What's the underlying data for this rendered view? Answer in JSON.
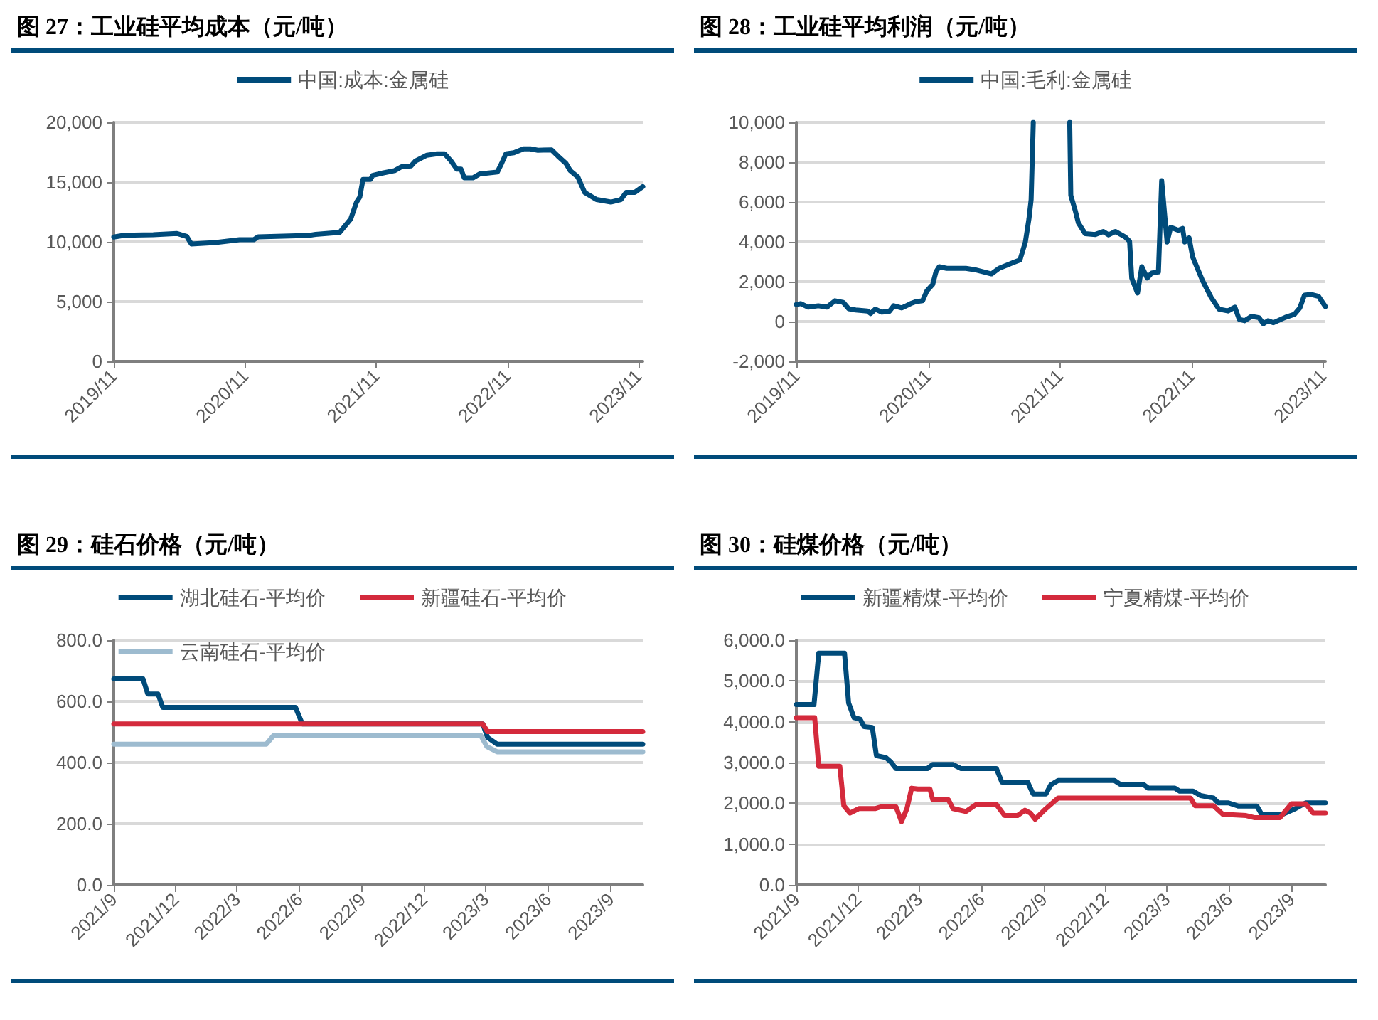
{
  "chart_data": [
    {
      "type": "line",
      "title": "图 27：工业硅平均成本（元/吨）",
      "legend": "top",
      "grid": "y",
      "marker": "none",
      "line_style": "solid",
      "xlim": [
        "2019-11-01",
        "2023-11-13"
      ],
      "xticks": [
        {
          "value": "2019-11-01",
          "label": "2019/11"
        },
        {
          "value": "2020-11-01",
          "label": "2020/11"
        },
        {
          "value": "2021-11-01",
          "label": "2021/11"
        },
        {
          "value": "2022-11-01",
          "label": "2022/11"
        },
        {
          "value": "2023-11-01",
          "label": "2023/11"
        }
      ],
      "ylim": [
        0,
        20000
      ],
      "yticks": [
        {
          "value": 0,
          "label": "0"
        },
        {
          "value": 5000,
          "label": "5,000"
        },
        {
          "value": 10000,
          "label": "10,000"
        },
        {
          "value": 15000,
          "label": "15,000"
        },
        {
          "value": 20000,
          "label": "20,000"
        }
      ],
      "series": [
        {
          "name": "中国:成本:金属硅",
          "color": "#004b7a",
          "x": [
            "2019-11-01",
            "2019-12-01",
            "2020-02-19",
            "2020-04-25",
            "2020-05-22",
            "2020-06-04",
            "2020-08-10",
            "2020-10-16",
            "2020-11-25",
            "2020-12-07",
            "2021-03-22",
            "2021-04-19",
            "2021-05-16",
            "2021-07-22",
            "2021-08-22",
            "2021-09-07",
            "2021-09-16",
            "2021-09-25",
            "2021-10-16",
            "2021-10-22",
            "2021-11-19",
            "2021-12-22",
            "2022-01-10",
            "2022-02-06",
            "2022-02-18",
            "2022-03-22",
            "2022-04-19",
            "2022-05-10",
            "2022-05-28",
            "2022-06-13",
            "2022-06-25",
            "2022-07-04",
            "2022-07-28",
            "2022-08-16",
            "2022-10-04",
            "2022-10-16",
            "2022-10-28",
            "2022-11-19",
            "2022-12-16",
            "2023-01-04",
            "2023-01-25",
            "2023-03-04",
            "2023-03-22",
            "2023-04-13",
            "2023-04-25",
            "2023-05-16",
            "2023-06-04",
            "2023-07-07",
            "2023-08-16",
            "2023-09-13",
            "2023-09-28",
            "2023-10-22",
            "2023-11-13"
          ],
          "values": [
            10400,
            10550,
            10600,
            10700,
            10450,
            9820,
            9940,
            10180,
            10180,
            10420,
            10500,
            10500,
            10620,
            10790,
            11920,
            13330,
            13740,
            15230,
            15230,
            15560,
            15760,
            15960,
            16280,
            16360,
            16770,
            17250,
            17370,
            17370,
            16770,
            16080,
            16080,
            15350,
            15350,
            15680,
            15840,
            16570,
            17370,
            17450,
            17780,
            17780,
            17660,
            17700,
            17170,
            16570,
            15960,
            15430,
            14140,
            13540,
            13330,
            13540,
            14140,
            14140,
            14620
          ]
        }
      ]
    },
    {
      "type": "line",
      "title": "图 28：工业硅平均利润（元/吨）",
      "legend": "top",
      "grid": "y",
      "marker": "none",
      "line_style": "solid",
      "xlim": [
        "2019-11-01",
        "2023-11-07"
      ],
      "xticks": [
        {
          "value": "2019-11-01",
          "label": "2019/11"
        },
        {
          "value": "2020-11-01",
          "label": "2020/11"
        },
        {
          "value": "2021-11-01",
          "label": "2021/11"
        },
        {
          "value": "2022-11-01",
          "label": "2022/11"
        },
        {
          "value": "2023-11-01",
          "label": "2023/11"
        }
      ],
      "ylim": [
        -2000,
        10000
      ],
      "yticks": [
        {
          "value": -2000,
          "label": "-2,000"
        },
        {
          "value": 0,
          "label": "0"
        },
        {
          "value": 2000,
          "label": "2,000"
        },
        {
          "value": 4000,
          "label": "4,000"
        },
        {
          "value": 6000,
          "label": "6,000"
        },
        {
          "value": 8000,
          "label": "8,000"
        },
        {
          "value": 10000,
          "label": "10,000"
        }
      ],
      "series": [
        {
          "name": "中国:毛利:金属硅",
          "color": "#004b7a",
          "x": [
            "2019-11-01",
            "2019-11-13",
            "2019-12-04",
            "2020-01-01",
            "2020-01-25",
            "2020-02-16",
            "2020-03-10",
            "2020-03-25",
            "2020-04-13",
            "2020-05-16",
            "2020-05-25",
            "2020-06-07",
            "2020-06-25",
            "2020-07-16",
            "2020-07-28",
            "2020-08-19",
            "2020-09-13",
            "2020-09-28",
            "2020-10-16",
            "2020-10-28",
            "2020-11-13",
            "2020-11-22",
            "2020-12-01",
            "2020-12-22",
            "2021-02-13",
            "2021-03-10",
            "2021-04-25",
            "2021-05-16",
            "2021-06-25",
            "2021-07-13",
            "2021-07-28",
            "2021-08-07",
            "2021-08-13",
            "2021-08-19",
            "2021-10-15",
            "2021-11-28",
            "2021-12-01",
            "2021-12-13",
            "2021-12-22",
            "2022-01-10",
            "2022-02-07",
            "2022-03-01",
            "2022-03-16",
            "2022-04-04",
            "2022-05-01",
            "2022-05-13",
            "2022-05-19",
            "2022-06-04",
            "2022-06-16",
            "2022-07-01",
            "2022-07-13",
            "2022-08-01",
            "2022-08-10",
            "2022-08-25",
            "2022-09-04",
            "2022-09-25",
            "2022-10-07",
            "2022-10-13",
            "2022-10-25",
            "2022-11-04",
            "2022-12-01",
            "2022-12-25",
            "2023-01-16",
            "2023-02-10",
            "2023-03-01",
            "2023-03-13",
            "2023-03-28",
            "2023-04-16",
            "2023-05-07",
            "2023-05-19",
            "2023-06-01",
            "2023-06-16",
            "2023-07-19",
            "2023-08-13",
            "2023-08-28",
            "2023-09-10",
            "2023-09-28",
            "2023-10-19",
            "2023-11-07"
          ],
          "values": [
            850,
            900,
            720,
            790,
            720,
            1040,
            960,
            640,
            580,
            530,
            400,
            620,
            470,
            510,
            790,
            680,
            900,
            1000,
            1040,
            1540,
            1860,
            2490,
            2750,
            2670,
            2670,
            2600,
            2390,
            2670,
            2960,
            3090,
            3990,
            5160,
            6120,
            10000,
            null,
            10000,
            6330,
            5590,
            4950,
            4410,
            4370,
            4520,
            4350,
            4520,
            4240,
            4030,
            2180,
            1430,
            2750,
            2180,
            2430,
            2490,
            7070,
            3990,
            4730,
            4580,
            4670,
            3990,
            4200,
            3240,
            2070,
            1220,
            620,
            530,
            720,
            110,
            40,
            260,
            190,
            -110,
            40,
            -60,
            210,
            360,
            680,
            1320,
            1360,
            1260,
            750
          ]
        }
      ]
    },
    {
      "type": "line",
      "title": "图 29：硅石价格（元/吨）",
      "legend": "top",
      "grid": "y",
      "marker": "none",
      "line_style": "solid",
      "xlim": [
        "2021-09-01",
        "2023-10-18"
      ],
      "xticks": [
        {
          "value": "2021-09-01",
          "label": "2021/9"
        },
        {
          "value": "2021-12-01",
          "label": "2021/12"
        },
        {
          "value": "2022-03-01",
          "label": "2022/3"
        },
        {
          "value": "2022-06-01",
          "label": "2022/6"
        },
        {
          "value": "2022-09-01",
          "label": "2022/9"
        },
        {
          "value": "2022-12-01",
          "label": "2022/12"
        },
        {
          "value": "2023-03-01",
          "label": "2023/3"
        },
        {
          "value": "2023-06-01",
          "label": "2023/6"
        },
        {
          "value": "2023-09-01",
          "label": "2023/9"
        }
      ],
      "ylim": [
        0,
        800
      ],
      "yticks": [
        {
          "value": 0,
          "label": "0.0"
        },
        {
          "value": 200,
          "label": "200.0"
        },
        {
          "value": 400,
          "label": "400.0"
        },
        {
          "value": 600,
          "label": "600.0"
        },
        {
          "value": 800,
          "label": "800.0"
        }
      ],
      "series": [
        {
          "name": "湖北硅石-平均价",
          "color": "#004b7a",
          "x": [
            "2021-09-01",
            "2021-10-14",
            "2021-10-21",
            "2021-11-05",
            "2021-11-12",
            "2022-05-26",
            "2022-06-05",
            "2023-02-25",
            "2023-03-04",
            "2023-03-18",
            "2023-10-18"
          ],
          "values": [
            673,
            673,
            624,
            624,
            580,
            580,
            526,
            526,
            482,
            460,
            460
          ]
        },
        {
          "name": "新疆硅石-平均价",
          "color": "#d42a3c",
          "x": [
            "2021-09-01",
            "2023-02-25",
            "2023-03-04",
            "2023-10-18"
          ],
          "values": [
            526,
            526,
            501,
            501
          ]
        },
        {
          "name": "云南硅石-平均价",
          "color": "#9dbbcf",
          "x": [
            "2021-09-01",
            "2022-04-13",
            "2022-04-24",
            "2023-02-22",
            "2023-03-03",
            "2023-03-18",
            "2023-10-18"
          ],
          "values": [
            460,
            460,
            489,
            489,
            452,
            435,
            435
          ]
        }
      ]
    },
    {
      "type": "line",
      "title": "图 30：硅煤价格（元/吨）",
      "legend": "top",
      "grid": "y",
      "marker": "none",
      "line_style": "solid",
      "xlim": [
        "2021-09-01",
        "2023-10-21"
      ],
      "xticks": [
        {
          "value": "2021-09-01",
          "label": "2021/9"
        },
        {
          "value": "2021-12-01",
          "label": "2021/12"
        },
        {
          "value": "2022-03-01",
          "label": "2022/3"
        },
        {
          "value": "2022-06-01",
          "label": "2022/6"
        },
        {
          "value": "2022-09-01",
          "label": "2022/9"
        },
        {
          "value": "2022-12-01",
          "label": "2022/12"
        },
        {
          "value": "2023-03-01",
          "label": "2023/3"
        },
        {
          "value": "2023-06-01",
          "label": "2023/6"
        },
        {
          "value": "2023-09-01",
          "label": "2023/9"
        }
      ],
      "ylim": [
        0,
        6000
      ],
      "yticks": [
        {
          "value": 0,
          "label": "0.0"
        },
        {
          "value": 1000,
          "label": "1,000.0"
        },
        {
          "value": 2000,
          "label": "2,000.0"
        },
        {
          "value": 3000,
          "label": "3,000.0"
        },
        {
          "value": 4000,
          "label": "4,000.0"
        },
        {
          "value": 5000,
          "label": "5,000.0"
        },
        {
          "value": 6000,
          "label": "6,000.0"
        }
      ],
      "series": [
        {
          "name": "新疆精煤-平均价",
          "color": "#004b7a",
          "x": [
            "2021-09-01",
            "2021-09-27",
            "2021-10-04",
            "2021-11-11",
            "2021-11-17",
            "2021-11-25",
            "2021-12-04",
            "2021-12-10",
            "2021-12-22",
            "2021-12-28",
            "2022-01-11",
            "2022-01-18",
            "2022-01-26",
            "2022-03-13",
            "2022-03-21",
            "2022-04-20",
            "2022-05-02",
            "2022-06-23",
            "2022-07-01",
            "2022-08-08",
            "2022-08-16",
            "2022-09-04",
            "2022-09-11",
            "2022-09-22",
            "2022-12-14",
            "2022-12-22",
            "2023-01-25",
            "2023-02-02",
            "2023-03-13",
            "2023-03-20",
            "2023-04-09",
            "2023-04-20",
            "2023-05-09",
            "2023-05-16",
            "2023-05-31",
            "2023-06-15",
            "2023-07-12",
            "2023-07-19",
            "2023-08-19",
            "2023-09-07",
            "2023-09-22",
            "2023-10-21"
          ],
          "values": [
            4420,
            4420,
            5680,
            5680,
            4460,
            4100,
            4060,
            3880,
            3860,
            3170,
            3120,
            3020,
            2850,
            2850,
            2950,
            2950,
            2850,
            2850,
            2520,
            2520,
            2230,
            2230,
            2450,
            2560,
            2560,
            2470,
            2470,
            2370,
            2370,
            2300,
            2300,
            2190,
            2130,
            2010,
            2010,
            1930,
            1930,
            1730,
            1730,
            1870,
            2010,
            2010
          ]
        },
        {
          "name": "宁夏精煤-平均价",
          "color": "#d42a3c",
          "x": [
            "2021-09-01",
            "2021-09-28",
            "2021-10-04",
            "2021-11-04",
            "2021-11-10",
            "2021-11-19",
            "2021-12-02",
            "2021-12-26",
            "2022-01-03",
            "2022-01-26",
            "2022-02-03",
            "2022-02-11",
            "2022-02-18",
            "2022-02-27",
            "2022-03-17",
            "2022-03-21",
            "2022-04-13",
            "2022-04-20",
            "2022-05-09",
            "2022-05-24",
            "2022-06-23",
            "2022-07-05",
            "2022-07-24",
            "2022-08-04",
            "2022-08-12",
            "2022-08-19",
            "2022-09-04",
            "2022-09-22",
            "2023-04-05",
            "2023-04-12",
            "2023-05-09",
            "2023-05-23",
            "2023-06-26",
            "2023-07-08",
            "2023-08-15",
            "2023-09-01",
            "2023-09-22",
            "2023-10-03",
            "2023-10-21"
          ],
          "values": [
            4100,
            4100,
            2910,
            2910,
            1940,
            1760,
            1870,
            1870,
            1910,
            1910,
            1550,
            1870,
            2370,
            2350,
            2350,
            2090,
            2090,
            1870,
            1800,
            1970,
            1970,
            1700,
            1700,
            1830,
            1760,
            1610,
            1870,
            2130,
            2130,
            1940,
            1940,
            1730,
            1700,
            1650,
            1650,
            1990,
            1990,
            1760,
            1760
          ]
        }
      ]
    }
  ]
}
